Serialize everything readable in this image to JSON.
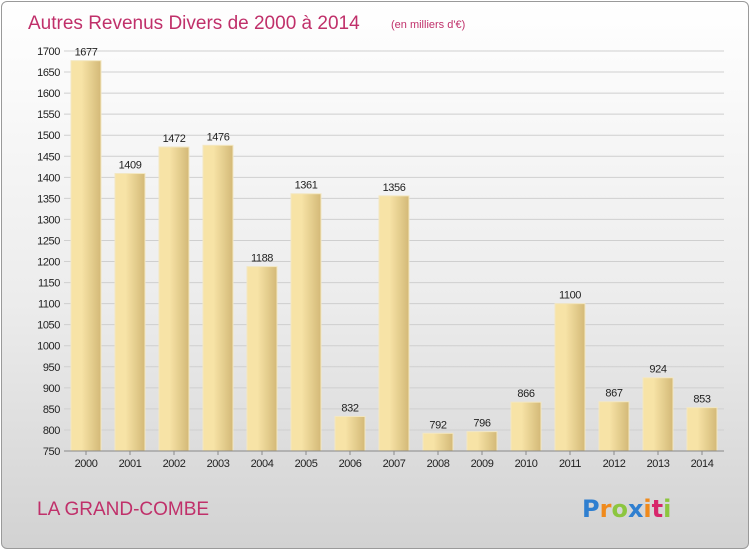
{
  "title": "Autres Revenus Divers de 2000 à 2014",
  "unit": "(en milliers d'€)",
  "commune": "LA GRAND-COMBE",
  "logo": {
    "text": "Proxiti",
    "letters": [
      "P",
      "r",
      "o",
      "x",
      "i",
      "t",
      "i"
    ],
    "colors": [
      "#2f7fd0",
      "#f08a1c",
      "#8cc63f",
      "#2f7fd0",
      "#f08a1c",
      "#d7266b",
      "#8cc63f"
    ]
  },
  "colors": {
    "title": "#c0306a",
    "bar_light": "#f7e3a6",
    "bar_dark": "#d3b977",
    "background_top": "#ffffff",
    "background_bottom": "#d2d2d2"
  },
  "chart_data": {
    "type": "bar",
    "title": "Autres Revenus Divers de 2000 à 2014",
    "subtitle": "(en milliers d'€)",
    "categories": [
      "2000",
      "2001",
      "2002",
      "2003",
      "2004",
      "2005",
      "2006",
      "2007",
      "2008",
      "2009",
      "2010",
      "2011",
      "2012",
      "2013",
      "2014"
    ],
    "values": [
      1677,
      1409,
      1472,
      1476,
      1188,
      1361,
      832,
      1356,
      792,
      796,
      866,
      1100,
      867,
      924,
      853
    ],
    "ylim": [
      750,
      1700
    ],
    "yticks": [
      750,
      800,
      850,
      900,
      950,
      1000,
      1050,
      1100,
      1150,
      1200,
      1250,
      1300,
      1350,
      1400,
      1450,
      1500,
      1550,
      1600,
      1650,
      1700
    ],
    "grid": true,
    "data_labels": true
  }
}
